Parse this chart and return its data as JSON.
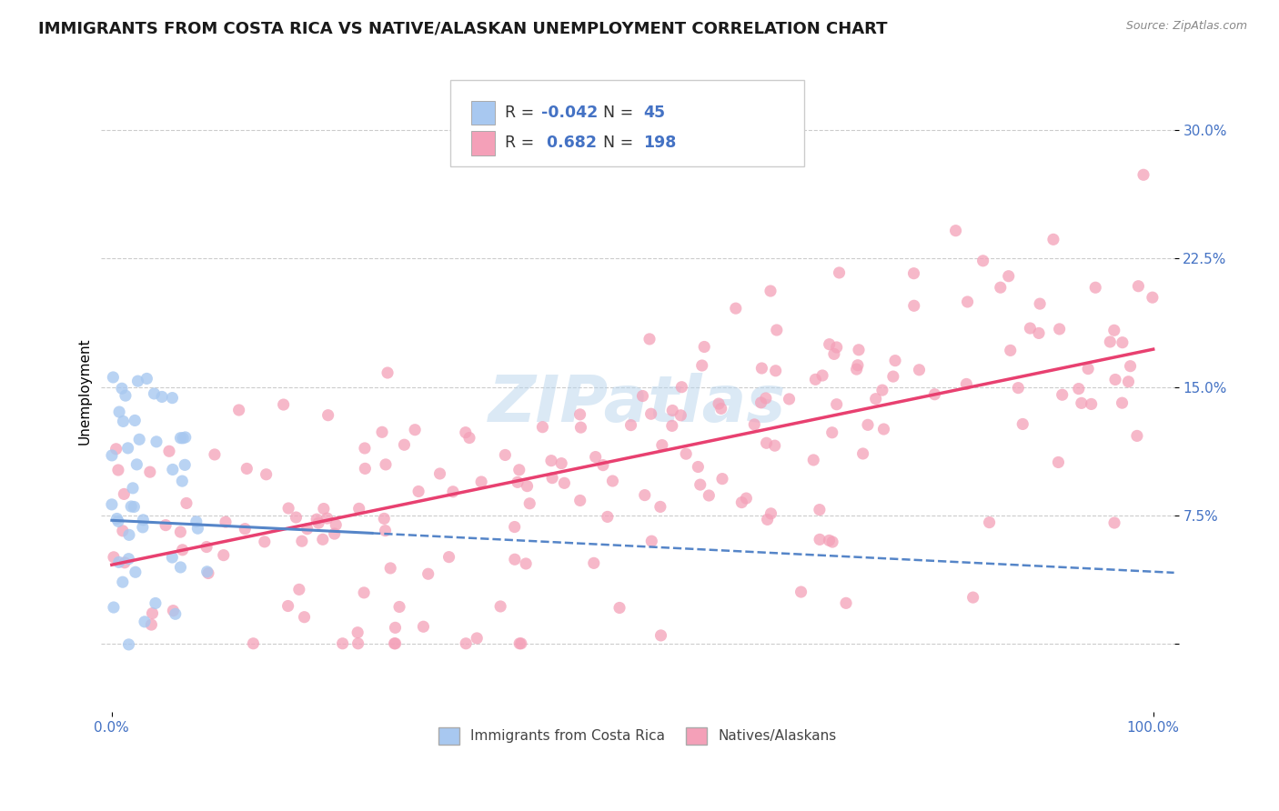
{
  "title": "IMMIGRANTS FROM COSTA RICA VS NATIVE/ALASKAN UNEMPLOYMENT CORRELATION CHART",
  "source": "Source: ZipAtlas.com",
  "ylabel": "Unemployment",
  "xlim": [
    -0.01,
    1.02
  ],
  "ylim": [
    -0.04,
    0.335
  ],
  "yticks": [
    0.0,
    0.075,
    0.15,
    0.225,
    0.3
  ],
  "ytick_labels": [
    "",
    "7.5%",
    "15.0%",
    "22.5%",
    "30.0%"
  ],
  "xticks": [
    0.0,
    1.0
  ],
  "xtick_labels": [
    "0.0%",
    "100.0%"
  ],
  "blue_R": -0.042,
  "blue_N": 45,
  "pink_R": 0.682,
  "pink_N": 198,
  "blue_color": "#A8C8F0",
  "pink_color": "#F4A0B8",
  "blue_line_color": "#5585C8",
  "pink_line_color": "#E84070",
  "legend_label_blue": "Immigrants from Costa Rica",
  "legend_label_pink": "Natives/Alaskans",
  "watermark": "ZIPatlas",
  "background_color": "#FFFFFF",
  "grid_color": "#CCCCCC",
  "title_fontsize": 13,
  "axis_label_fontsize": 11,
  "tick_label_color": "#4472C4",
  "blue_line_start_y": 0.072,
  "blue_line_end_y": 0.042,
  "pink_line_start_y": 0.046,
  "pink_line_end_y": 0.172
}
